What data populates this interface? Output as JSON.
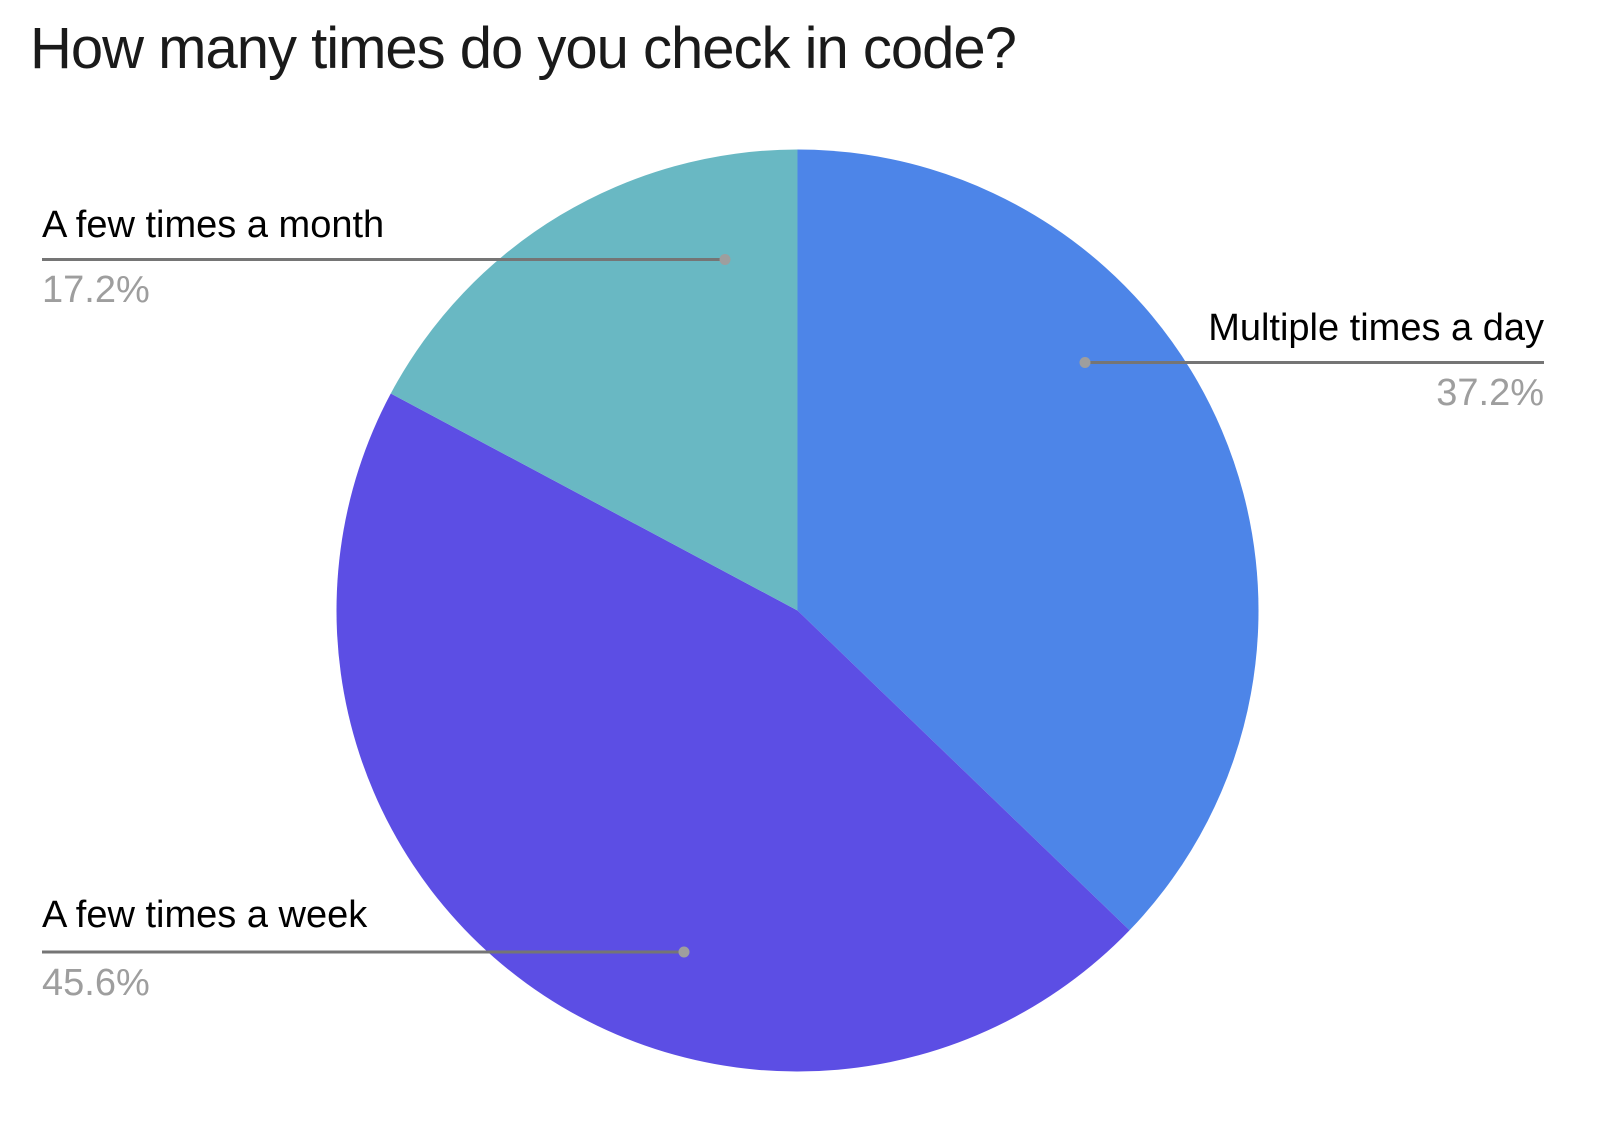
{
  "chart_data": {
    "type": "pie",
    "title": "How many times do you check in code?",
    "legend_position": "none",
    "start_angle_deg": 0,
    "direction": "clockwise",
    "slices": [
      {
        "label": "Multiple times a day",
        "value_pct": 37.2,
        "percent_label": "37.2%",
        "color": "#4d85e8"
      },
      {
        "label": "A few times a week",
        "value_pct": 45.6,
        "percent_label": "45.6%",
        "color": "#5c4ee4"
      },
      {
        "label": "A few times a month",
        "value_pct": 17.2,
        "percent_label": "17.2%",
        "color": "#69b8c3"
      }
    ]
  },
  "styles": {
    "background": "#ffffff",
    "title_color": "#1a1a1a",
    "label_color": "#000000",
    "percent_color": "#9e9e9e",
    "leader_line_color": "#757575",
    "leader_dot_color": "#9e9e9e"
  }
}
